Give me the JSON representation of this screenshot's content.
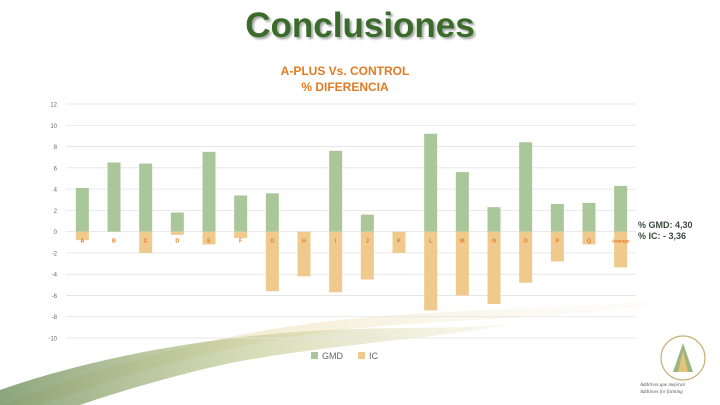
{
  "slide": {
    "title": "Conclusiones",
    "summary": [
      "% GMD: 4,30",
      "% IC: - 3,36"
    ],
    "tagline": [
      "Additives que mejoran",
      "Additives for farming"
    ]
  },
  "colors": {
    "gmd": "#a9c79a",
    "ic": "#f0c98c",
    "label": "#e07b24",
    "title": "#3a6b2a"
  },
  "chart_data": {
    "type": "bar",
    "title": "A-PLUS Vs. CONTROL",
    "subtitle": "% DIFERENCIA",
    "categories": [
      "A",
      "B",
      "C",
      "D",
      "E",
      "F",
      "G",
      "H",
      "I",
      "J",
      "K",
      "L",
      "M",
      "N",
      "O",
      "P",
      "Q",
      "Average"
    ],
    "series": [
      {
        "name": "GMD",
        "values": [
          4.1,
          6.5,
          6.4,
          1.8,
          7.5,
          3.4,
          3.6,
          0,
          7.6,
          1.6,
          0,
          9.2,
          5.6,
          2.3,
          8.4,
          2.6,
          2.7,
          4.3
        ]
      },
      {
        "name": "IC",
        "values": [
          -0.8,
          0,
          -2.0,
          -0.3,
          -1.2,
          -0.6,
          -5.6,
          -4.2,
          -5.7,
          -4.5,
          -2.0,
          -7.4,
          -6.0,
          -6.8,
          -4.8,
          -2.8,
          -1.2,
          -3.36
        ]
      }
    ],
    "ylim": [
      -10,
      12
    ],
    "yticks": [
      12,
      10,
      8,
      6,
      4,
      2,
      0,
      -2,
      -4,
      -6,
      -8,
      -10
    ],
    "grid": true,
    "legend": "bottom",
    "stacked": true
  }
}
